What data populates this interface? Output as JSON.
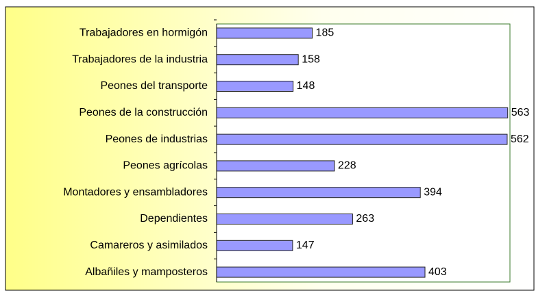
{
  "chart_data": {
    "type": "bar",
    "orientation": "horizontal",
    "categories": [
      "Trabajadores en hormigón",
      "Trabajadores de la industria",
      "Peones del transporte",
      "Peones de la construcción",
      "Peones de industrias",
      "Peones agrícolas",
      "Montadores y ensambladores",
      "Dependientes",
      "Camareros y asimilados",
      "Albañiles y mamposteros"
    ],
    "values": [
      185,
      158,
      148,
      563,
      562,
      228,
      394,
      263,
      147,
      403
    ],
    "color": "#9999ff",
    "xlim": [
      0,
      570
    ]
  }
}
